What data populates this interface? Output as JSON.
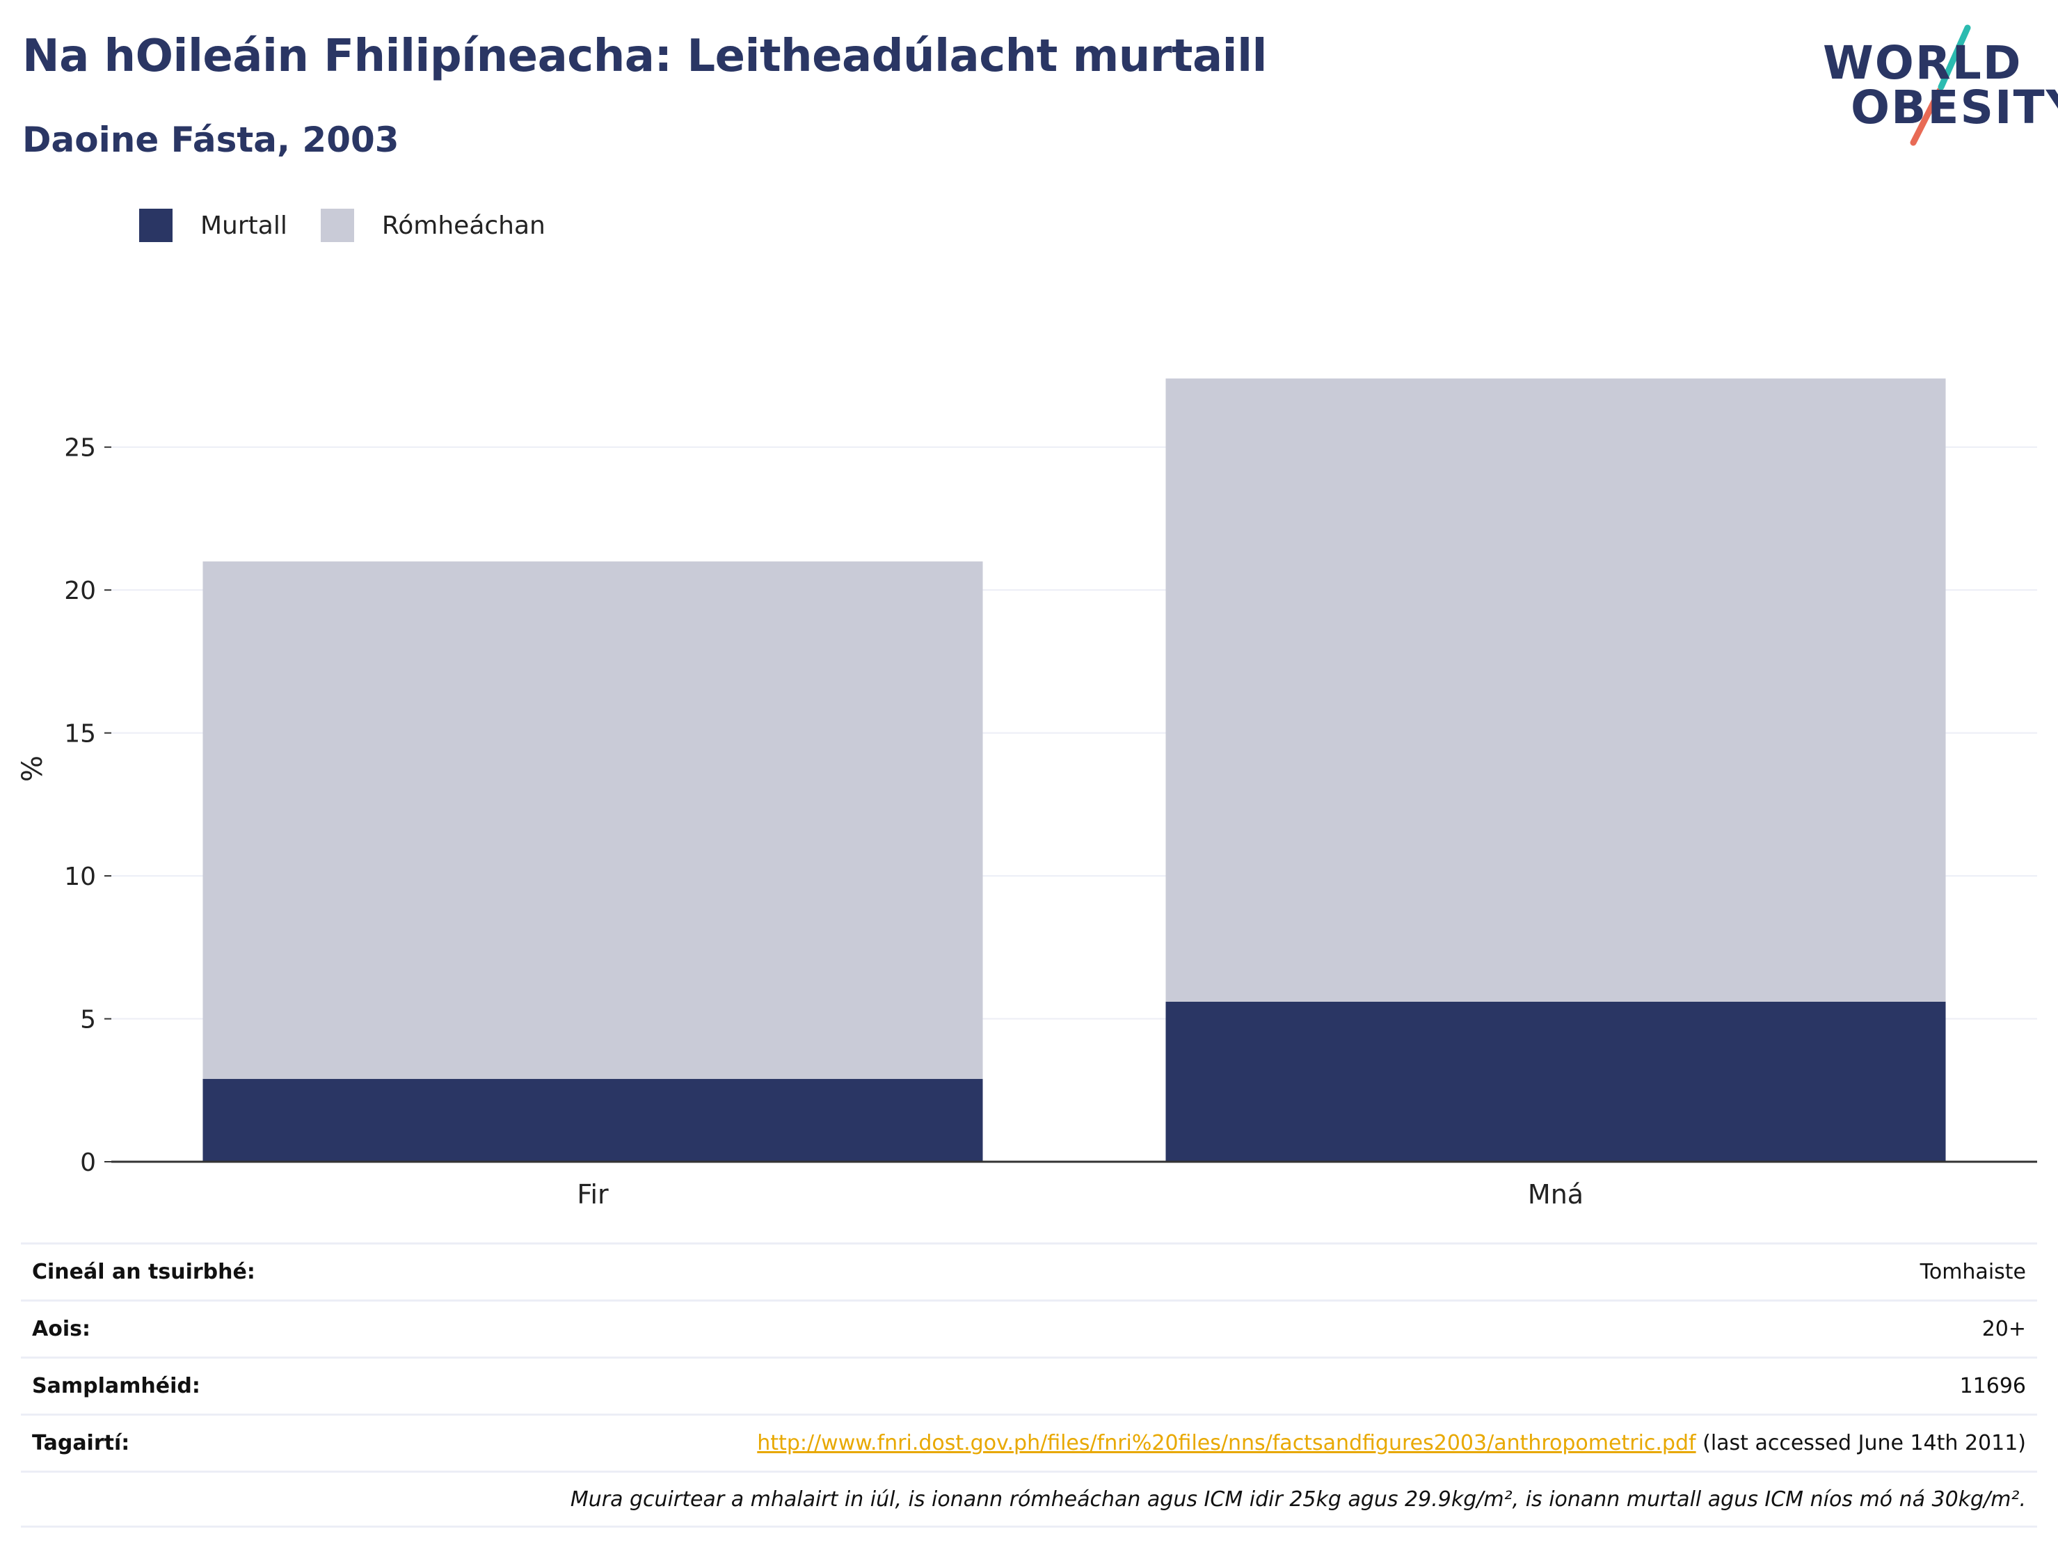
{
  "header": {
    "title": "Na hOileáin Fhilipíneacha: Leitheadúlacht murtaill",
    "subtitle": "Daoine Fásta, 2003"
  },
  "logo": {
    "line1": "WORLD",
    "line2": "OBESITY",
    "colors": {
      "text": "#2a3664",
      "slash_top": "#2bbbb0",
      "slash_bottom": "#e86a55"
    }
  },
  "colors": {
    "obese": "#2a3664",
    "overweight": "#c9cbd7",
    "grid": "#eceef6",
    "axis": "#333333",
    "link": "#e8a800"
  },
  "chart_data": {
    "type": "bar",
    "stacked": true,
    "categories": [
      "Fir",
      "Mná"
    ],
    "series": [
      {
        "name": "Murtall",
        "values": [
          2.9,
          5.6
        ],
        "color": "#2a3664"
      },
      {
        "name": "Rómheáchan",
        "values": [
          18.1,
          21.8
        ],
        "color": "#c9cbd7"
      }
    ],
    "ylabel": "%",
    "ylim": [
      0,
      27.5
    ],
    "yticks": [
      0,
      5,
      10,
      15,
      20,
      25
    ],
    "grid": true,
    "legend": "top-left"
  },
  "info": {
    "survey_type": {
      "label": "Cineál an tsuirbhé:",
      "value": "Tomhaiste"
    },
    "age": {
      "label": "Aois:",
      "value": "20+"
    },
    "sample_size": {
      "label": "Samplamhéid:",
      "value": "11696"
    },
    "references": {
      "label": "Tagairtí:",
      "link": "http://www.fnri.dost.gov.ph/files/fnri%20files/nns/factsandfigures2003/anthropometric.pdf",
      "suffix": " (last accessed June 14th 2011)"
    },
    "note": "Mura gcuirtear a mhalairt in iúl, is ionann rómheáchan agus ICM idir 25kg agus 29.9kg/m², is ionann murtall agus ICM níos mó ná 30kg/m²."
  }
}
